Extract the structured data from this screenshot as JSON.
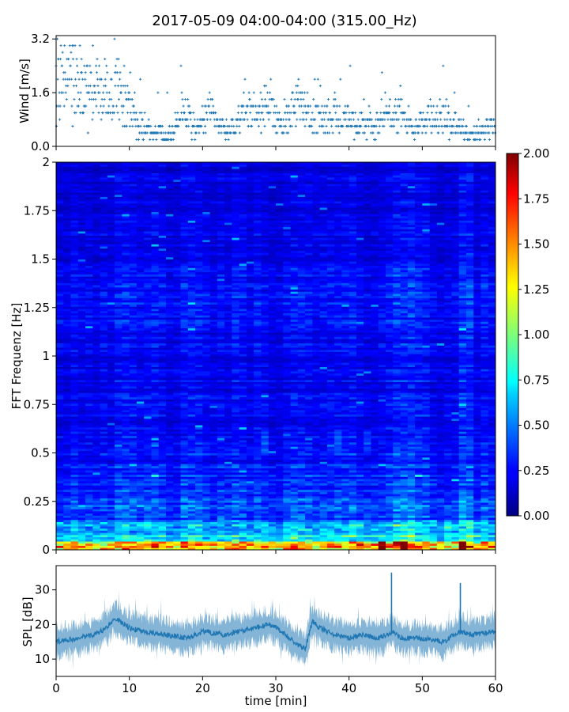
{
  "figure": {
    "title": "2017-05-09 04:00-04:00 (315.00_Hz)",
    "colors": {
      "series": "#1f77b4",
      "axis": "#000000",
      "background": "#ffffff"
    }
  },
  "chart_data": [
    {
      "type": "scatter",
      "ylabel": "Wind [m/s]",
      "xlabel": "",
      "xlim": [
        0,
        60
      ],
      "ylim": [
        0.0,
        3.3
      ],
      "yticks": [
        0.0,
        1.6,
        3.2
      ],
      "ytick_labels": [
        "0.0",
        "1.6",
        "3.2"
      ],
      "xticks": [
        0,
        10,
        20,
        30,
        40,
        50,
        60
      ],
      "marker": "+",
      "profile_x": [
        0,
        2,
        4,
        6,
        8,
        10,
        11,
        12,
        14,
        15,
        16,
        17,
        18,
        19,
        20,
        21,
        22,
        23,
        24,
        25,
        26,
        27,
        28,
        29,
        30,
        31,
        32,
        33,
        34,
        35,
        36,
        37,
        38,
        39,
        40,
        41,
        42,
        43,
        44,
        45,
        46,
        47,
        48,
        49,
        50,
        51,
        52,
        53,
        54,
        55,
        56,
        57,
        58,
        59,
        60
      ],
      "profile_y": [
        1.8,
        2.0,
        1.6,
        1.5,
        1.6,
        1.3,
        0.9,
        0.5,
        0.4,
        0.3,
        0.5,
        1.0,
        0.8,
        0.5,
        0.7,
        1.1,
        0.7,
        0.5,
        0.5,
        0.7,
        1.2,
        0.9,
        1.0,
        1.2,
        0.9,
        0.6,
        1.0,
        1.3,
        1.0,
        0.9,
        0.8,
        0.8,
        0.9,
        0.7,
        0.9,
        0.6,
        0.8,
        0.5,
        0.6,
        0.9,
        0.7,
        1.0,
        0.7,
        0.5,
        0.7,
        0.9,
        0.7,
        0.8,
        0.6,
        0.6,
        0.4,
        0.3,
        0.4,
        0.6,
        0.7
      ]
    },
    {
      "type": "heatmap",
      "ylabel": "FFT Frequenz [Hz]",
      "xlabel": "",
      "xlim": [
        0,
        60
      ],
      "ylim": [
        0,
        2
      ],
      "yticks": [
        0,
        0.25,
        0.5,
        0.75,
        1,
        1.25,
        1.5,
        1.75,
        2
      ],
      "ytick_labels": [
        "0",
        "0.25",
        "0.5",
        "0.75",
        "1",
        "1.25",
        "1.5",
        "1.75",
        "2"
      ],
      "xticks": [
        0,
        10,
        20,
        30,
        40,
        50,
        60
      ],
      "colormap": "jet",
      "colorbar": {
        "vmin": 0.0,
        "vmax": 2.0,
        "ticks": [
          0.0,
          0.25,
          0.5,
          0.75,
          1.0,
          1.25,
          1.5,
          1.75,
          2.0
        ],
        "tick_labels": [
          "0.00",
          "0.25",
          "0.50",
          "0.75",
          "1.00",
          "1.25",
          "1.50",
          "1.75",
          "2.00"
        ]
      },
      "columns": 60,
      "rows": 180,
      "hot_bands_x": [
        44,
        47,
        55
      ],
      "bright_columns_x": [
        45,
        46,
        47,
        48,
        49,
        50,
        55,
        56
      ]
    },
    {
      "type": "line",
      "ylabel": "SPL [dB]",
      "xlabel": "time [min]",
      "xlim": [
        0,
        60
      ],
      "ylim": [
        5,
        37
      ],
      "yticks": [
        10,
        20,
        30
      ],
      "ytick_labels": [
        "10",
        "20",
        "30"
      ],
      "xticks": [
        0,
        10,
        20,
        30,
        40,
        50,
        60
      ],
      "xtick_labels": [
        "0",
        "10",
        "20",
        "30",
        "40",
        "50",
        "60"
      ],
      "profile_x": [
        0,
        3,
        5,
        7,
        8,
        10,
        12,
        15,
        18,
        20,
        23,
        25,
        27,
        29,
        30,
        32,
        33,
        34,
        35,
        36,
        38,
        40,
        42,
        44,
        45,
        46,
        47,
        50,
        53,
        55,
        57,
        60
      ],
      "profile_y": [
        15,
        16,
        17,
        19,
        22,
        19,
        18,
        17,
        16,
        18,
        17,
        18,
        19,
        20,
        19,
        16,
        14,
        13,
        21,
        19,
        17,
        16,
        17,
        16,
        17,
        18,
        16,
        16,
        15,
        18,
        17,
        18
      ],
      "spikes": [
        {
          "x": 45.8,
          "y": 35
        },
        {
          "x": 55.2,
          "y": 32
        }
      ]
    }
  ]
}
